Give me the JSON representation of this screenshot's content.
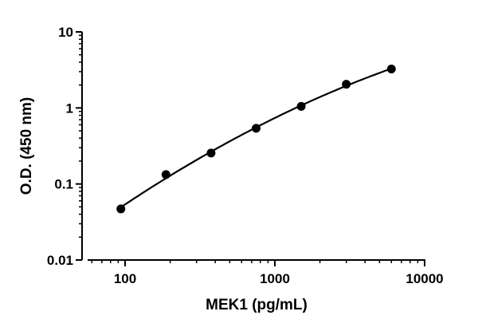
{
  "chart_data": {
    "type": "scatter",
    "xlabel": "MEK1 (pg/mL)",
    "ylabel": "O.D. (450 nm)",
    "xscale": "log",
    "yscale": "log",
    "xlim": [
      50,
      10000
    ],
    "ylim": [
      0.01,
      10
    ],
    "x_ticks": [
      {
        "value": 100,
        "label": "100"
      },
      {
        "value": 1000,
        "label": "1000"
      },
      {
        "value": 10000,
        "label": "10000"
      }
    ],
    "y_ticks": [
      {
        "value": 0.01,
        "label": "0.01"
      },
      {
        "value": 0.1,
        "label": "0.1"
      },
      {
        "value": 1,
        "label": "1"
      },
      {
        "value": 10,
        "label": "10"
      }
    ],
    "grid": false,
    "series": [
      {
        "x": [
          93.75,
          187.5,
          375,
          750,
          1500,
          3000,
          6000
        ],
        "y": [
          0.047,
          0.133,
          0.255,
          0.54,
          1.05,
          2.05,
          3.25
        ],
        "fit_curve": true
      }
    ],
    "colors": {
      "marker": "#000000",
      "line": "#000000",
      "axis": "#000000"
    }
  }
}
